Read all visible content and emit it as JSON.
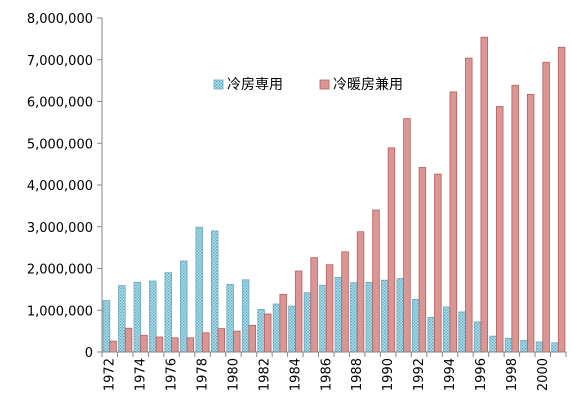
{
  "chart_data": {
    "type": "bar",
    "categories": [
      "1972",
      "1973",
      "1974",
      "1975",
      "1976",
      "1977",
      "1978",
      "1979",
      "1980",
      "1981",
      "1982",
      "1983",
      "1984",
      "1985",
      "1986",
      "1987",
      "1988",
      "1989",
      "1990",
      "1991",
      "1992",
      "1993",
      "1994",
      "1995",
      "1996",
      "1997",
      "1998",
      "1999",
      "2000",
      "2001"
    ],
    "x_tick_labels": [
      "1972",
      "1974",
      "1976",
      "1978",
      "1980",
      "1982",
      "1984",
      "1986",
      "1988",
      "1990",
      "1992",
      "1994",
      "1996",
      "1998",
      "2000"
    ],
    "series": [
      {
        "name": "冷房専用",
        "color": "#b7dde8",
        "pattern": "dotted",
        "values": [
          1230000,
          1590000,
          1670000,
          1700000,
          1900000,
          2180000,
          2990000,
          2900000,
          1620000,
          1730000,
          1020000,
          1150000,
          1100000,
          1420000,
          1600000,
          1790000,
          1660000,
          1670000,
          1720000,
          1760000,
          1260000,
          830000,
          1080000,
          960000,
          720000,
          380000,
          330000,
          280000,
          240000,
          220000
        ]
      },
      {
        "name": "冷暖房兼用",
        "color": "#d99694",
        "pattern": "solid",
        "values": [
          260000,
          570000,
          400000,
          360000,
          340000,
          340000,
          460000,
          560000,
          500000,
          640000,
          910000,
          1380000,
          1940000,
          2260000,
          2090000,
          2400000,
          2880000,
          3400000,
          4890000,
          5590000,
          4420000,
          4260000,
          6230000,
          7040000,
          7540000,
          5880000,
          6390000,
          6170000,
          6940000,
          7300000
        ]
      }
    ],
    "y_ticks": [
      "0",
      "1,000,000",
      "2,000,000",
      "3,000,000",
      "4,000,000",
      "5,000,000",
      "6,000,000",
      "7,000,000",
      "8,000,000"
    ],
    "ylim": [
      0,
      8000000
    ],
    "grid": false,
    "legend_position": "top-center",
    "title": "",
    "xlabel": "",
    "ylabel": ""
  }
}
